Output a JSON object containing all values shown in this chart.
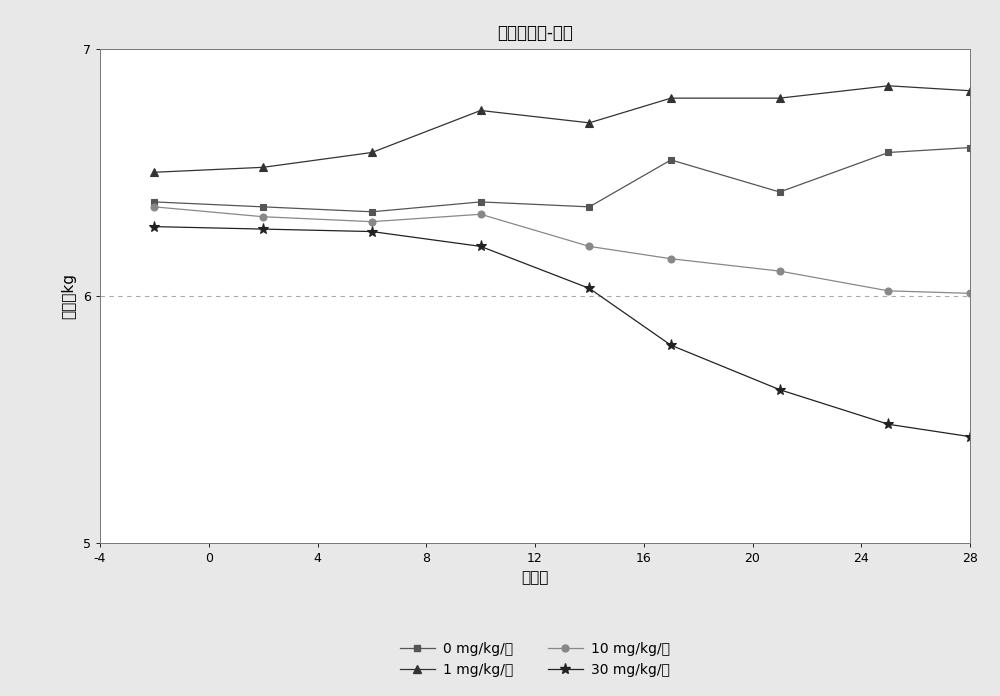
{
  "title": "平均体重値-雌性",
  "xlabel": "研究天",
  "ylabel": "重量，kg",
  "xlim": [
    -4,
    28
  ],
  "ylim": [
    5,
    7
  ],
  "xticks": [
    -4,
    0,
    4,
    8,
    12,
    16,
    20,
    24,
    28
  ],
  "yticks": [
    5,
    6,
    7
  ],
  "series_0": {
    "label": "0 mg/kg/天",
    "x": [
      -2,
      2,
      6,
      10,
      14,
      17,
      21,
      25,
      28
    ],
    "y": [
      6.38,
      6.36,
      6.34,
      6.38,
      6.36,
      6.55,
      6.42,
      6.58,
      6.6
    ],
    "color": "#555555",
    "marker": "s",
    "markersize": 5
  },
  "series_1": {
    "label": "1 mg/kg/天",
    "x": [
      -2,
      2,
      6,
      10,
      14,
      17,
      21,
      25,
      28
    ],
    "y": [
      6.5,
      6.52,
      6.58,
      6.75,
      6.7,
      6.8,
      6.8,
      6.85,
      6.83
    ],
    "color": "#333333",
    "marker": "^",
    "markersize": 6
  },
  "series_10": {
    "label": "10 mg/kg/天",
    "x": [
      -2,
      2,
      6,
      10,
      14,
      17,
      21,
      25,
      28
    ],
    "y": [
      6.36,
      6.32,
      6.3,
      6.33,
      6.2,
      6.15,
      6.1,
      6.02,
      6.01
    ],
    "color": "#888888",
    "marker": "o",
    "markersize": 5
  },
  "series_30": {
    "label": "30 mg/kg/天",
    "x": [
      -2,
      2,
      6,
      10,
      14,
      17,
      21,
      25,
      28
    ],
    "y": [
      6.28,
      6.27,
      6.26,
      6.2,
      6.03,
      5.8,
      5.62,
      5.48,
      5.43
    ],
    "color": "#222222",
    "marker": "*",
    "markersize": 8
  },
  "hline_y": 6.0,
  "bg_outer": "#e8e8e8",
  "bg_inner": "#ffffff"
}
